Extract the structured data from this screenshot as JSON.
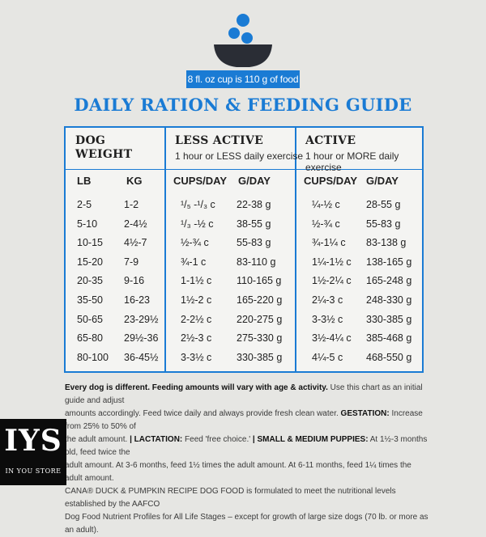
{
  "badge": "8 fl. oz cup is 110 g of food",
  "title": "DAILY RATION & FEEDING GUIDE",
  "colors": {
    "accent": "#1a7bd4",
    "bowl": "#2a2d35",
    "background": "#e6e6e3"
  },
  "headers": {
    "dog_weight": "DOG",
    "dog_weight_2": "WEIGHT",
    "less_active": "LESS ACTIVE",
    "less_active_sub": "1 hour or LESS daily exercise",
    "active": "ACTIVE",
    "active_sub": "1 hour or MORE daily exercise",
    "lb": "LB",
    "kg": "KG",
    "cups1": "CUPS/DAY",
    "g1": "G/DAY",
    "cups2": "CUPS/DAY",
    "g2": "G/DAY"
  },
  "rows": [
    {
      "lb": "2-5",
      "kg": "1-2",
      "cups_less": "¹/₅ -¹/₃ c",
      "g_less": "22-38 g",
      "cups_active": "¼-½ c",
      "g_active": "28-55 g"
    },
    {
      "lb": "5-10",
      "kg": "2-4½",
      "cups_less": "¹/₃ -½ c",
      "g_less": "38-55 g",
      "cups_active": "½-¾ c",
      "g_active": "55-83 g"
    },
    {
      "lb": "10-15",
      "kg": "4½-7",
      "cups_less": "½-¾ c",
      "g_less": "55-83 g",
      "cups_active": "¾-1¼ c",
      "g_active": "83-138 g"
    },
    {
      "lb": "15-20",
      "kg": "7-9",
      "cups_less": "¾-1 c",
      "g_less": "83-110 g",
      "cups_active": "1¼-1½ c",
      "g_active": "138-165 g"
    },
    {
      "lb": "20-35",
      "kg": "9-16",
      "cups_less": "1-1½ c",
      "g_less": "110-165 g",
      "cups_active": "1½-2¼ c",
      "g_active": "165-248 g"
    },
    {
      "lb": "35-50",
      "kg": "16-23",
      "cups_less": "1½-2 c",
      "g_less": "165-220 g",
      "cups_active": "2¼-3 c",
      "g_active": "248-330 g"
    },
    {
      "lb": "50-65",
      "kg": "23-29½",
      "cups_less": "2-2½ c",
      "g_less": "220-275 g",
      "cups_active": "3-3½ c",
      "g_active": "330-385 g"
    },
    {
      "lb": "65-80",
      "kg": "29½-36",
      "cups_less": "2½-3 c",
      "g_less": "275-330 g",
      "cups_active": "3½-4¼ c",
      "g_active": "385-468 g"
    },
    {
      "lb": "80-100",
      "kg": "36-45½",
      "cups_less": "3-3½ c",
      "g_less": "330-385 g",
      "cups_active": "4¼-5 c",
      "g_active": "468-550 g"
    }
  ],
  "notes": {
    "line1_bold": "Every dog is different. Feeding amounts will vary with age & activity.",
    "line1_rest": " Use this chart as an initial guide and adjust",
    "line2a": "amounts accordingly. Feed twice daily and always provide fresh clean water. ",
    "gestation_label": "GESTATION:",
    "line2b": " Increase from 25% to 50% of",
    "line3a": "the adult amount. ",
    "lactation_label": "| LACTATION:",
    "line3b": " Feed 'free choice.' ",
    "puppies_label": "| SMALL & MEDIUM PUPPIES:",
    "line3c": " At 1½-3 months old, feed twice the",
    "line4": "adult amount. At 3-6 months, feed 1½ times the adult amount. At 6-11 months, feed 1¼ times the adult amount.",
    "line5": "CANA® DUCK & PUMPKIN RECIPE DOG FOOD is formulated to meet the nutritional levels established by the AAFCO",
    "line6": "Dog Food Nutrient Profiles for All Life Stages – except for growth of large size dogs (70 lb. or more as an adult)."
  },
  "logo": {
    "big": "IYS",
    "small": "IN YOU STORE"
  }
}
